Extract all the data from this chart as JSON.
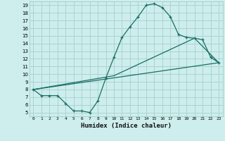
{
  "xlabel": "Humidex (Indice chaleur)",
  "bg_color": "#cdeeed",
  "grid_color": "#aad4cf",
  "line_color": "#1a6e64",
  "xlim": [
    -0.5,
    23.5
  ],
  "ylim": [
    4.5,
    19.5
  ],
  "xticks": [
    0,
    1,
    2,
    3,
    4,
    5,
    6,
    7,
    8,
    9,
    10,
    11,
    12,
    13,
    14,
    15,
    16,
    17,
    18,
    19,
    20,
    21,
    22,
    23
  ],
  "yticks": [
    5,
    6,
    7,
    8,
    9,
    10,
    11,
    12,
    13,
    14,
    15,
    16,
    17,
    18,
    19
  ],
  "line1_x": [
    0,
    1,
    2,
    3,
    4,
    5,
    6,
    7,
    8,
    9,
    10,
    11,
    12,
    13,
    14,
    15,
    16,
    17,
    18,
    19,
    20,
    21,
    22,
    23
  ],
  "line1_y": [
    8.0,
    7.2,
    7.2,
    7.2,
    6.2,
    5.2,
    5.2,
    5.0,
    6.5,
    9.5,
    12.2,
    14.8,
    16.2,
    17.5,
    19.0,
    19.2,
    18.7,
    17.5,
    15.2,
    14.8,
    14.7,
    14.5,
    12.2,
    11.5
  ],
  "line2_x": [
    0,
    23
  ],
  "line2_y": [
    8.0,
    11.5
  ],
  "line3_x": [
    0,
    10,
    20,
    23
  ],
  "line3_y": [
    8.0,
    9.8,
    14.7,
    11.5
  ]
}
